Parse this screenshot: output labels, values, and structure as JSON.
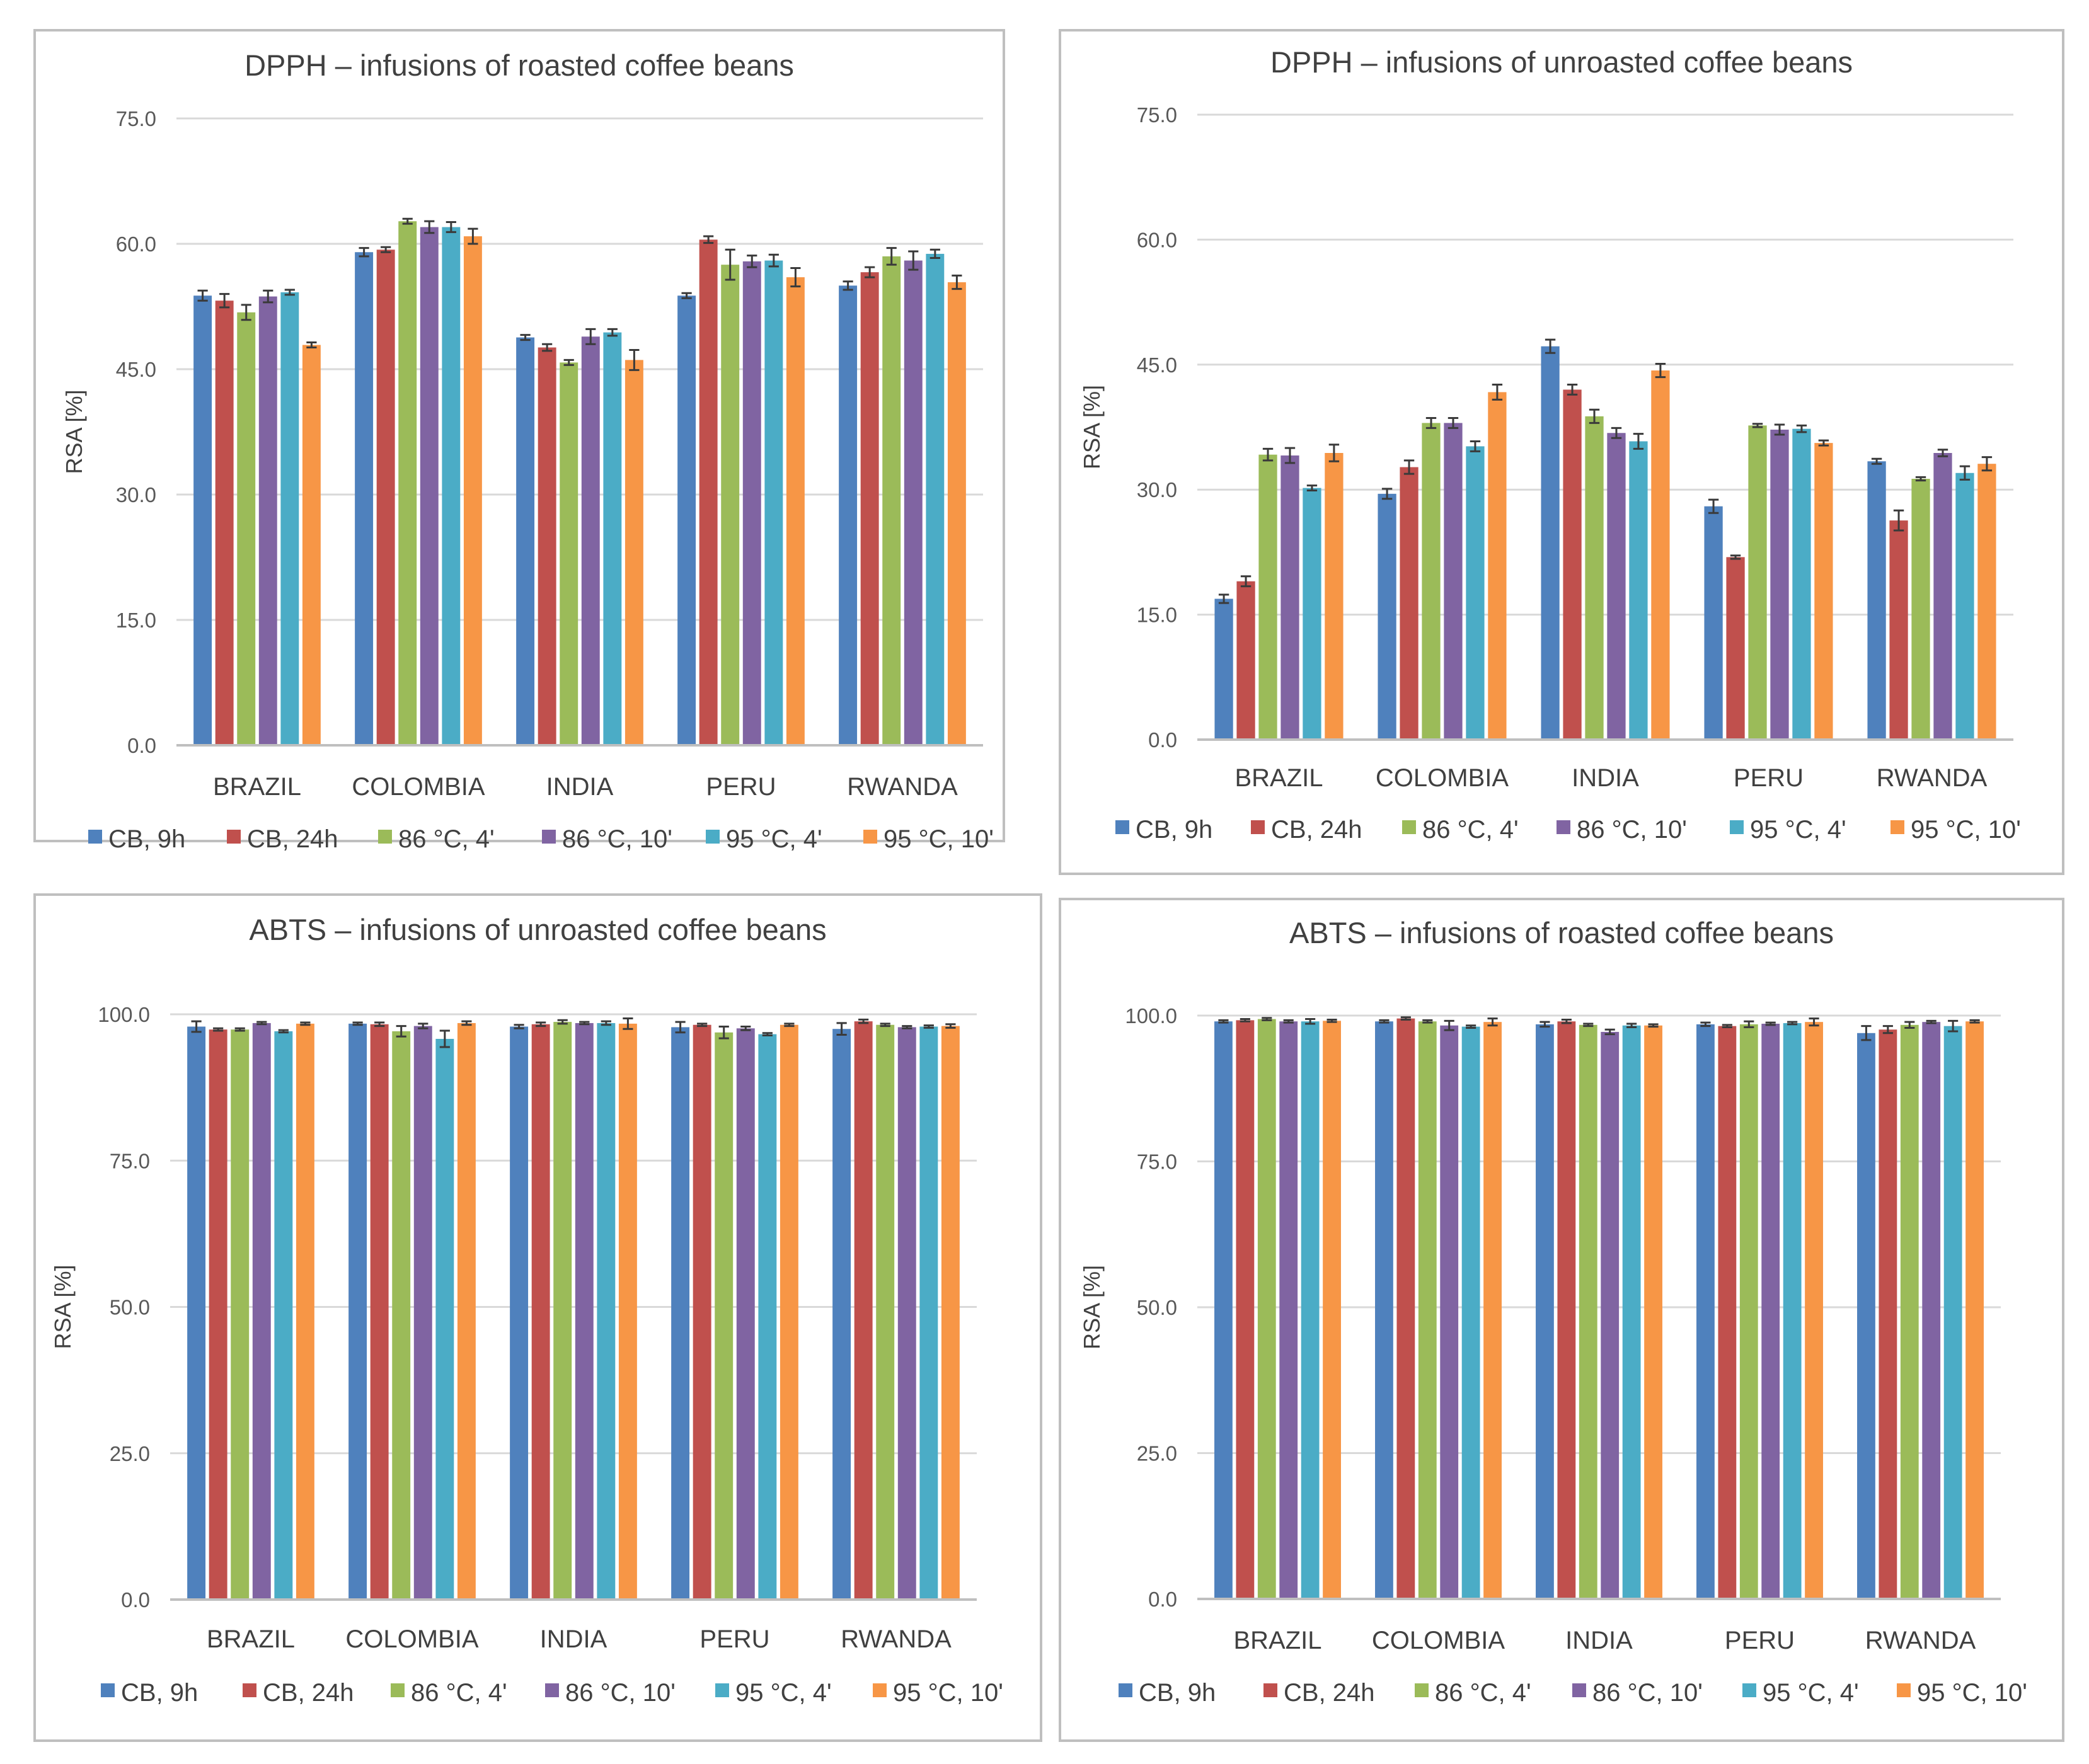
{
  "chart_data": [
    {
      "type": "bar",
      "title": "DPPH – infusions of roasted coffee beans",
      "xlabel": "",
      "ylabel": "RSA [%]",
      "ylim": [
        0,
        75
      ],
      "yticks": [
        "0.0",
        "15.0",
        "30.0",
        "45.0",
        "60.0",
        "75.0"
      ],
      "categories": [
        "BRAZIL",
        "COLOMBIA",
        "INDIA",
        "PERU",
        "RWANDA"
      ],
      "series": [
        {
          "name": "CB, 9h",
          "color": "#4f81bd",
          "values": [
            53.8,
            59.0,
            48.8,
            53.8,
            55.0
          ],
          "errors": [
            0.6,
            0.5,
            0.3,
            0.3,
            0.5
          ]
        },
        {
          "name": "CB, 24h",
          "color": "#c0504d",
          "values": [
            53.2,
            59.3,
            47.6,
            60.5,
            56.6
          ],
          "errors": [
            0.8,
            0.3,
            0.4,
            0.4,
            0.6
          ]
        },
        {
          "name": "86 °C, 4'",
          "color": "#9bbb59",
          "values": [
            51.8,
            62.7,
            45.8,
            57.5,
            58.5
          ],
          "errors": [
            0.9,
            0.3,
            0.3,
            1.8,
            1.0
          ]
        },
        {
          "name": "86 °C, 10'",
          "color": "#8064a2",
          "values": [
            53.7,
            62.0,
            48.9,
            57.9,
            58.0
          ],
          "errors": [
            0.7,
            0.7,
            0.9,
            0.7,
            1.1
          ]
        },
        {
          "name": "95 °C, 4'",
          "color": "#4bacc6",
          "values": [
            54.2,
            62.0,
            49.4,
            58.0,
            58.8
          ],
          "errors": [
            0.3,
            0.6,
            0.4,
            0.7,
            0.5
          ]
        },
        {
          "name": "95 °C, 10'",
          "color": "#f79646",
          "values": [
            47.9,
            60.9,
            46.1,
            56.0,
            55.4
          ],
          "errors": [
            0.3,
            0.9,
            1.2,
            1.1,
            0.8
          ]
        }
      ]
    },
    {
      "type": "bar",
      "title": "DPPH – infusions of unroasted coffee beans",
      "xlabel": "",
      "ylabel": "RSA [%]",
      "ylim": [
        0,
        75
      ],
      "yticks": [
        "0.0",
        "15.0",
        "30.0",
        "45.0",
        "60.0",
        "75.0"
      ],
      "categories": [
        "BRAZIL",
        "COLOMBIA",
        "INDIA",
        "PERU",
        "RWANDA"
      ],
      "series": [
        {
          "name": "CB, 9h",
          "color": "#4f81bd",
          "values": [
            16.9,
            29.5,
            47.2,
            28.0,
            33.4
          ],
          "errors": [
            0.5,
            0.6,
            0.8,
            0.8,
            0.3
          ]
        },
        {
          "name": "CB, 24h",
          "color": "#c0504d",
          "values": [
            19.0,
            32.7,
            42.0,
            21.9,
            26.3
          ],
          "errors": [
            0.6,
            0.8,
            0.6,
            0.2,
            1.2
          ]
        },
        {
          "name": "86 °C, 4'",
          "color": "#9bbb59",
          "values": [
            34.2,
            38.0,
            38.8,
            37.7,
            31.3
          ],
          "errors": [
            0.7,
            0.6,
            0.8,
            0.2,
            0.2
          ]
        },
        {
          "name": "86 °C, 10'",
          "color": "#8064a2",
          "values": [
            34.1,
            38.0,
            36.8,
            37.2,
            34.4
          ],
          "errors": [
            0.9,
            0.6,
            0.6,
            0.6,
            0.4
          ]
        },
        {
          "name": "95 °C, 4'",
          "color": "#4bacc6",
          "values": [
            30.2,
            35.2,
            35.8,
            37.3,
            32.0
          ],
          "errors": [
            0.3,
            0.6,
            0.9,
            0.4,
            0.8
          ]
        },
        {
          "name": "95 °C, 10'",
          "color": "#f79646",
          "values": [
            34.4,
            41.7,
            44.3,
            35.6,
            33.1
          ],
          "errors": [
            1.0,
            0.9,
            0.8,
            0.3,
            0.8
          ]
        }
      ]
    },
    {
      "type": "bar",
      "title": "ABTS – infusions of unroasted coffee beans",
      "xlabel": "",
      "ylabel": "RSA [%]",
      "ylim": [
        0,
        100
      ],
      "yticks": [
        "0.0",
        "25.0",
        "50.0",
        "75.0",
        "100.0"
      ],
      "categories": [
        "BRAZIL",
        "COLOMBIA",
        "INDIA",
        "PERU",
        "RWANDA"
      ],
      "series": [
        {
          "name": "CB, 9h",
          "color": "#4f81bd",
          "values": [
            97.9,
            98.4,
            97.9,
            97.8,
            97.5
          ],
          "errors": [
            0.9,
            0.2,
            0.3,
            0.9,
            1.0
          ]
        },
        {
          "name": "CB, 24h",
          "color": "#c0504d",
          "values": [
            97.4,
            98.3,
            98.3,
            98.2,
            98.8
          ],
          "errors": [
            0.2,
            0.3,
            0.3,
            0.2,
            0.3
          ]
        },
        {
          "name": "86 °C, 4'",
          "color": "#9bbb59",
          "values": [
            97.4,
            97.1,
            98.7,
            96.9,
            98.2
          ],
          "errors": [
            0.2,
            0.9,
            0.3,
            1.0,
            0.2
          ]
        },
        {
          "name": "86 °C, 10'",
          "color": "#8064a2",
          "values": [
            98.5,
            98.0,
            98.5,
            97.6,
            97.8
          ],
          "errors": [
            0.2,
            0.4,
            0.2,
            0.3,
            0.2
          ]
        },
        {
          "name": "95 °C, 4'",
          "color": "#4bacc6",
          "values": [
            97.1,
            95.8,
            98.5,
            96.6,
            97.9
          ],
          "errors": [
            0.2,
            1.4,
            0.3,
            0.2,
            0.2
          ]
        },
        {
          "name": "95 °C, 10'",
          "color": "#f79646",
          "values": [
            98.4,
            98.5,
            98.4,
            98.2,
            98.0
          ],
          "errors": [
            0.2,
            0.3,
            0.9,
            0.2,
            0.3
          ]
        }
      ]
    },
    {
      "type": "bar",
      "title": "ABTS – infusions of roasted coffee beans",
      "xlabel": "",
      "ylabel": "RSA [%]",
      "ylim": [
        0,
        100
      ],
      "yticks": [
        "0.0",
        "25.0",
        "50.0",
        "75.0",
        "100.0"
      ],
      "categories": [
        "BRAZIL",
        "COLOMBIA",
        "INDIA",
        "PERU",
        "RWANDA"
      ],
      "series": [
        {
          "name": "CB, 9h",
          "color": "#4f81bd",
          "values": [
            99.0,
            99.0,
            98.5,
            98.5,
            97.0
          ],
          "errors": [
            0.2,
            0.2,
            0.4,
            0.3,
            1.2
          ]
        },
        {
          "name": "CB, 24h",
          "color": "#c0504d",
          "values": [
            99.2,
            99.5,
            99.0,
            98.2,
            97.6
          ],
          "errors": [
            0.2,
            0.2,
            0.3,
            0.2,
            0.6
          ]
        },
        {
          "name": "86 °C, 4'",
          "color": "#9bbb59",
          "values": [
            99.4,
            99.0,
            98.4,
            98.5,
            98.4
          ],
          "errors": [
            0.2,
            0.2,
            0.2,
            0.5,
            0.5
          ]
        },
        {
          "name": "86 °C, 10'",
          "color": "#8064a2",
          "values": [
            99.0,
            98.3,
            97.2,
            98.6,
            98.9
          ],
          "errors": [
            0.2,
            0.8,
            0.4,
            0.2,
            0.2
          ]
        },
        {
          "name": "95 °C, 4'",
          "color": "#4bacc6",
          "values": [
            99.0,
            98.1,
            98.3,
            98.7,
            98.2
          ],
          "errors": [
            0.4,
            0.2,
            0.3,
            0.2,
            0.9
          ]
        },
        {
          "name": "95 °C, 10'",
          "color": "#f79646",
          "values": [
            99.1,
            98.9,
            98.3,
            98.9,
            99.0
          ],
          "errors": [
            0.2,
            0.6,
            0.2,
            0.6,
            0.2
          ]
        }
      ]
    }
  ]
}
